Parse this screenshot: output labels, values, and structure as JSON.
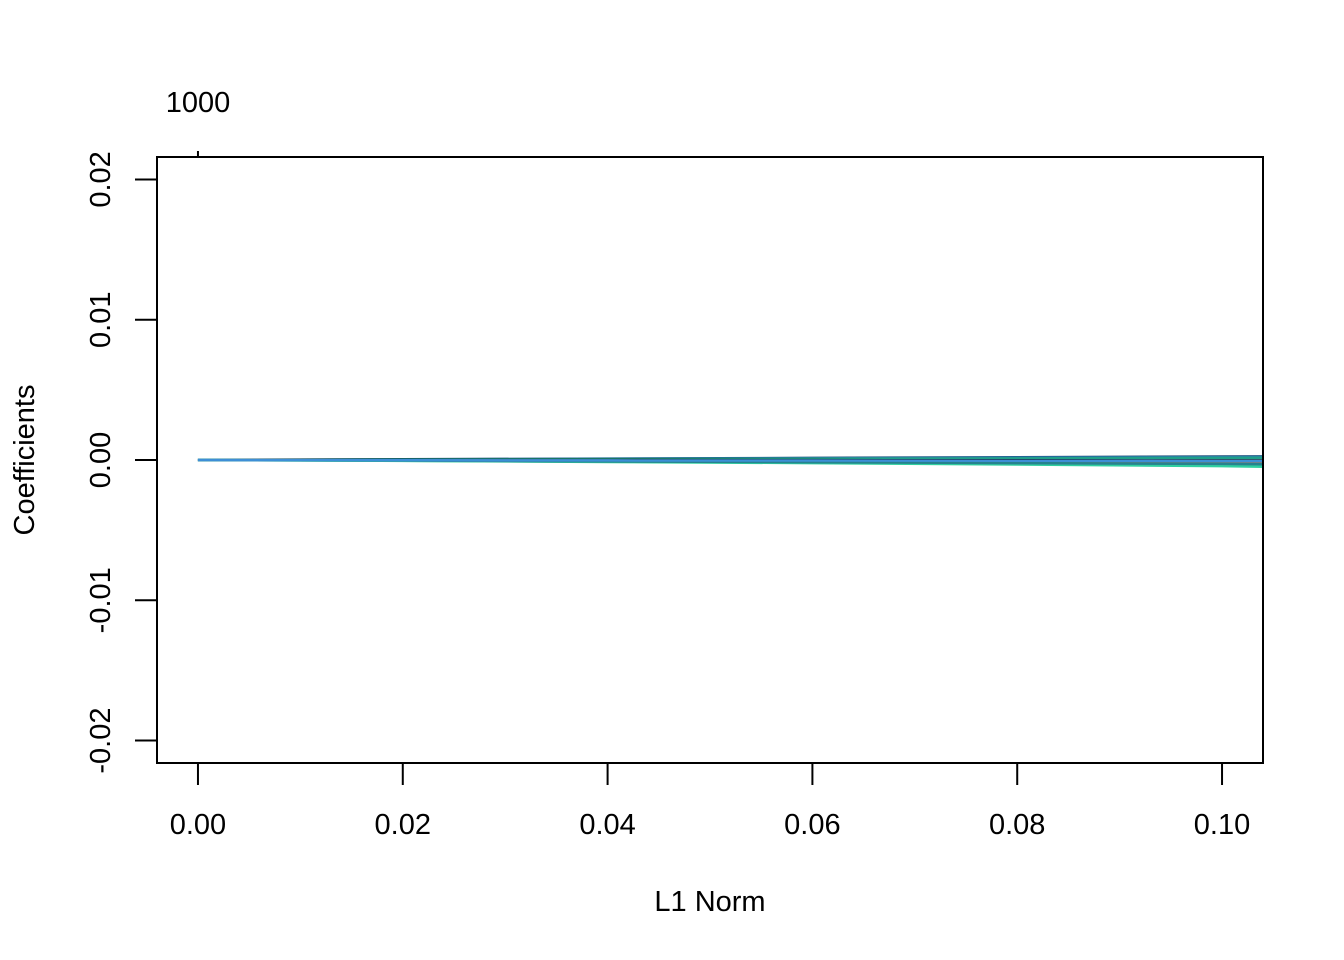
{
  "chart_data": {
    "type": "line",
    "title": "",
    "xlabel": "L1 Norm",
    "ylabel": "Coefficients",
    "xlim": [
      -0.004,
      0.104
    ],
    "ylim": [
      -0.0216,
      0.0216
    ],
    "x_ticks": [
      "0.00",
      "0.02",
      "0.04",
      "0.06",
      "0.08",
      "0.10"
    ],
    "x_tick_values": [
      0,
      0.02,
      0.04,
      0.06,
      0.08,
      0.1
    ],
    "y_ticks": [
      "-0.02",
      "-0.01",
      "0.00",
      "0.01",
      "0.02"
    ],
    "y_tick_values": [
      -0.02,
      -0.01,
      0,
      0.01,
      0.02
    ],
    "top_axis": {
      "tick_values": [
        0
      ],
      "tick_labels": [
        "1000"
      ]
    },
    "grid": false,
    "legend": "none",
    "x": [
      0,
      0.02,
      0.04,
      0.06,
      0.08,
      0.1,
      0.104
    ],
    "series": [
      {
        "color": "#1f4e79",
        "values": [
          0,
          5e-05,
          0.0001,
          0.00015,
          0.0002,
          0.00025,
          0.00026
        ]
      },
      {
        "color": "#2a7ab0",
        "values": [
          0,
          4e-05,
          8e-05,
          0.00012,
          0.00016,
          0.0002,
          0.00021
        ]
      },
      {
        "color": "#1f9e89",
        "values": [
          0,
          3e-05,
          6e-05,
          9e-05,
          0.00012,
          0.00015,
          0.00016
        ]
      },
      {
        "color": "#000000",
        "values": [
          0,
          0.0,
          0.0,
          -1e-05,
          -2e-05,
          -3e-05,
          -3e-05
        ]
      },
      {
        "color": "#555555",
        "values": [
          0,
          -2e-05,
          -4e-05,
          -6e-05,
          -8e-05,
          -0.0001,
          -0.0001
        ]
      },
      {
        "color": "#7f7f7f",
        "values": [
          0,
          -3e-05,
          -7e-05,
          -0.0001,
          -0.00014,
          -0.00017,
          -0.00018
        ]
      },
      {
        "color": "#35b779",
        "values": [
          0,
          -5e-05,
          -0.00012,
          -0.00018,
          -0.00026,
          -0.00035,
          -0.00038
        ]
      },
      {
        "color": "#2fd0a0",
        "values": [
          0,
          -6e-05,
          -0.00014,
          -0.00022,
          -0.00032,
          -0.00044,
          -0.00048
        ]
      },
      {
        "color": "#26828e",
        "values": [
          0,
          -4e-05,
          -0.0001,
          -0.00016,
          -0.00022,
          -0.00028,
          -0.0003
        ]
      },
      {
        "color": "#3d8fd6",
        "values": [
          0,
          -2e-05,
          -3e-05,
          -4e-05,
          -5e-05,
          -6e-05,
          -6e-05
        ]
      }
    ]
  }
}
